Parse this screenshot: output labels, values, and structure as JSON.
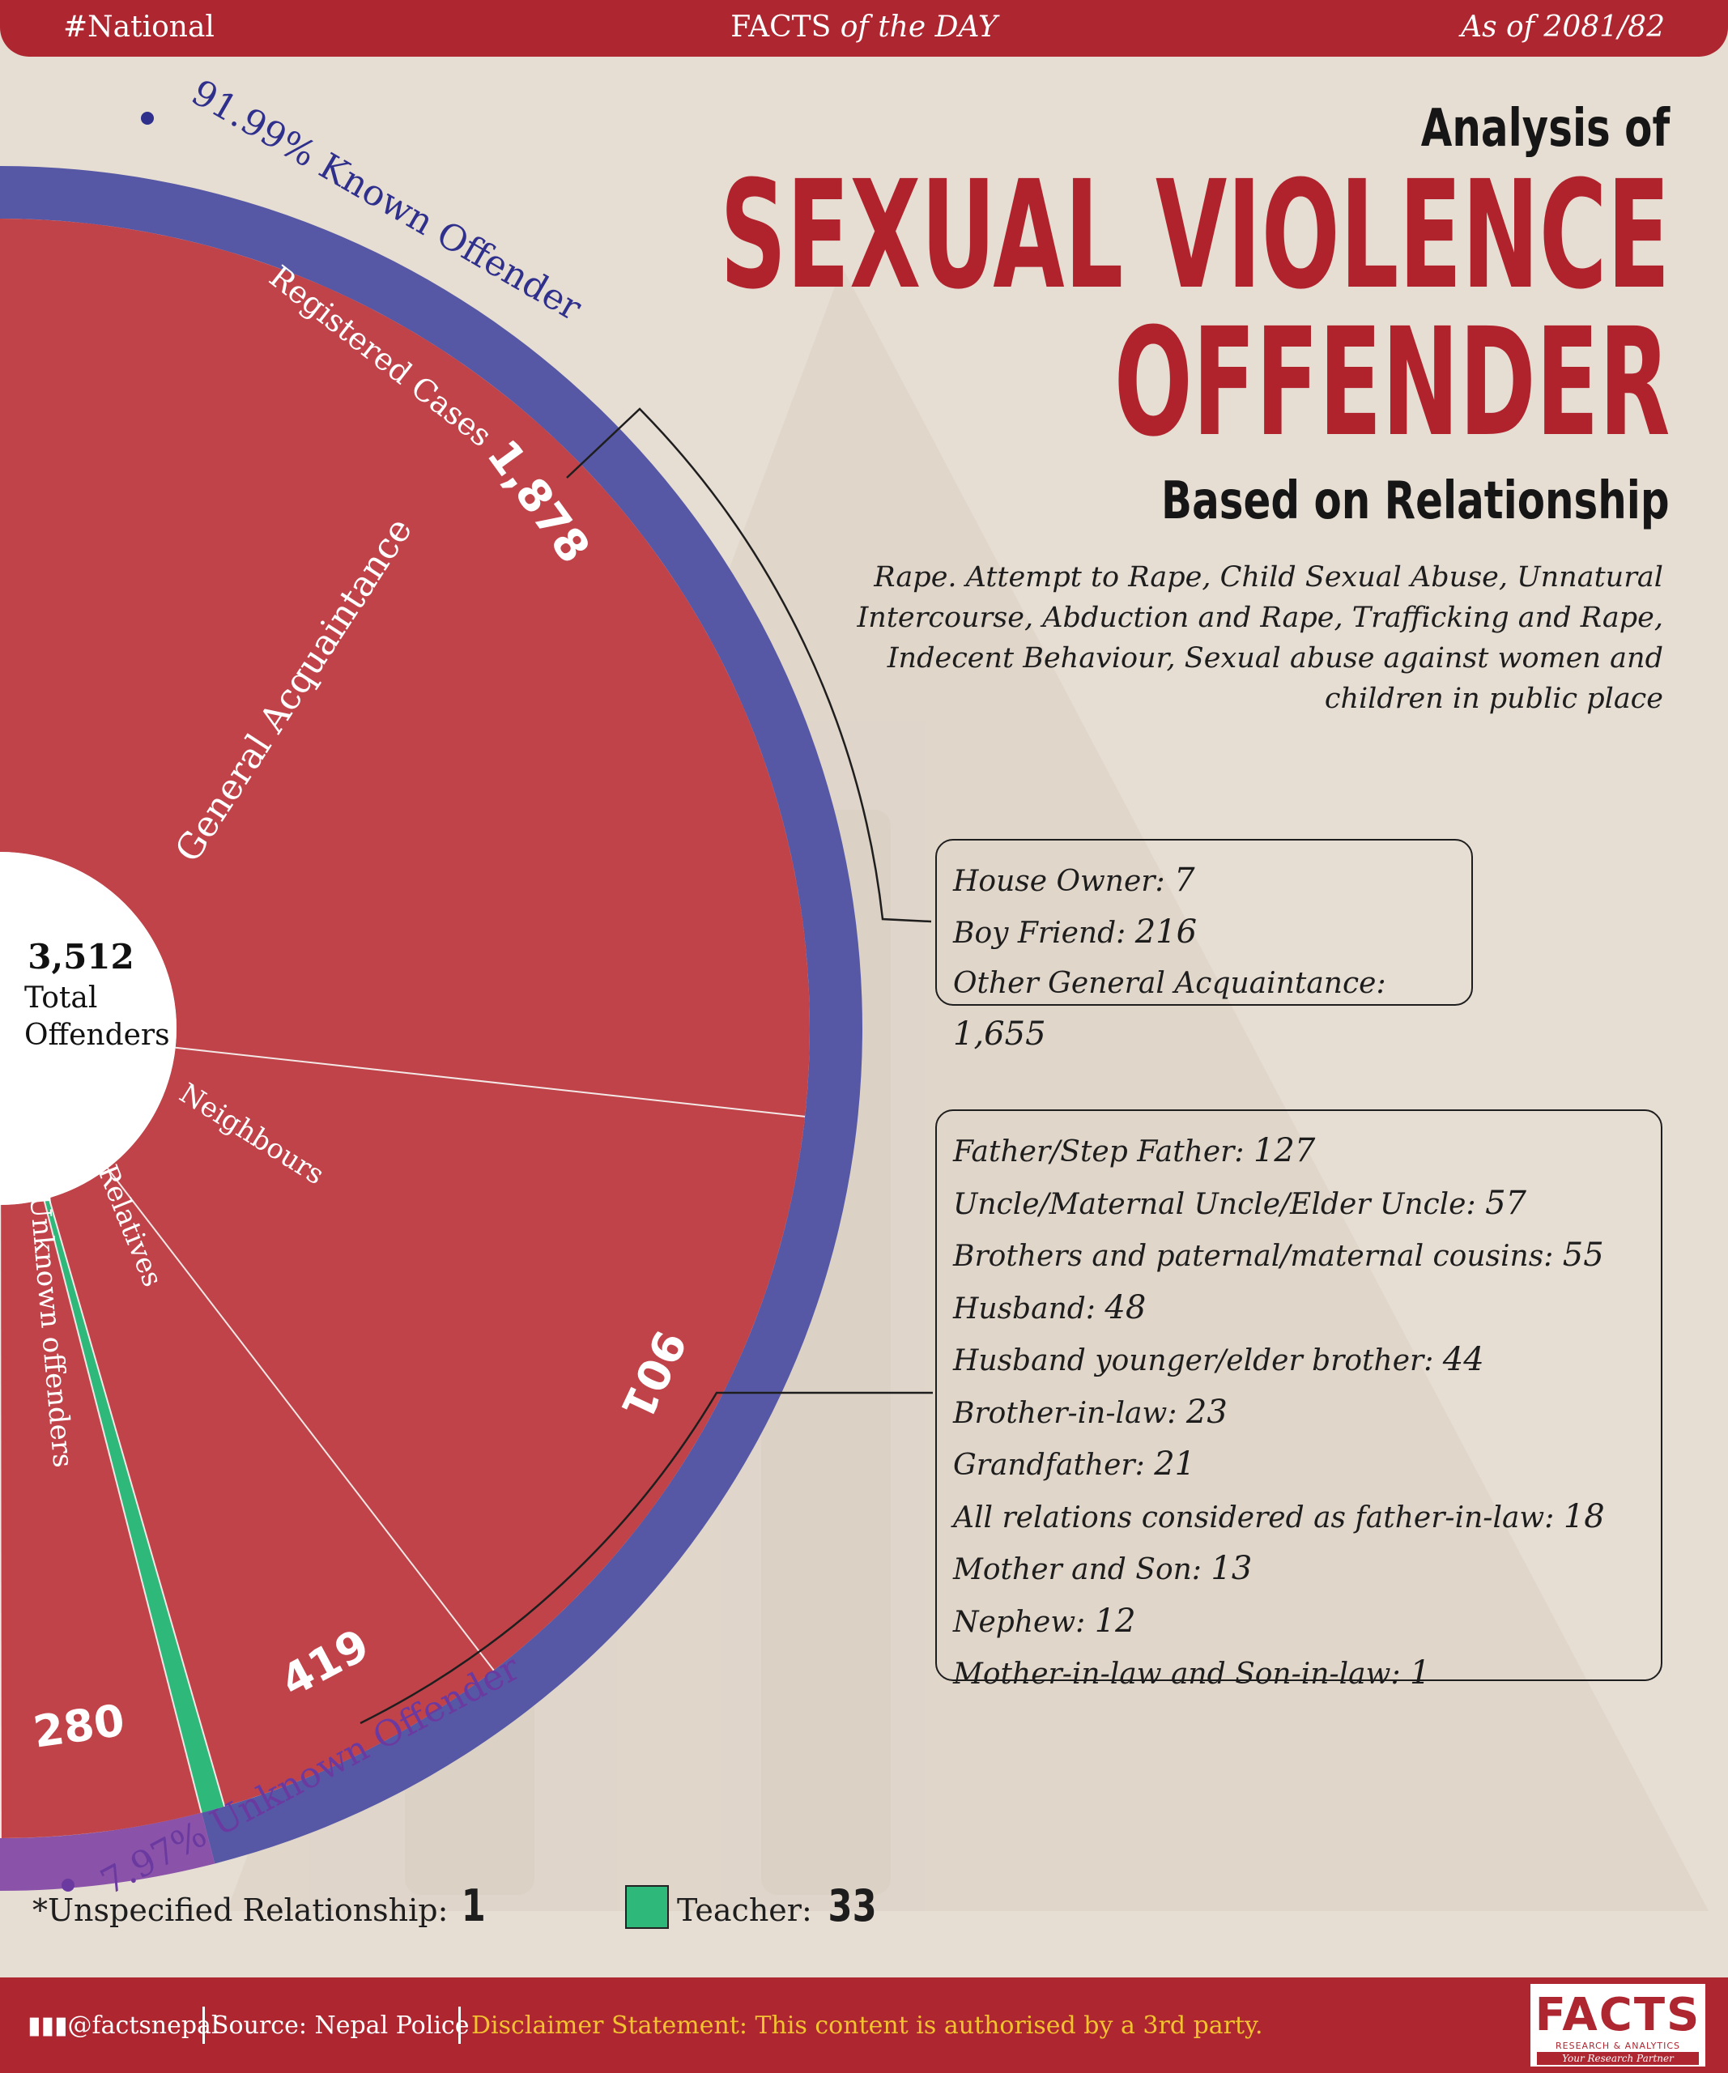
{
  "header": {
    "tag": "#National",
    "center_prefix": "FACTS",
    "center_suffix": "of the DAY",
    "as_of": "As of 2081/82"
  },
  "title": {
    "line1": "Analysis of",
    "main1": "SEXUAL VIOLENCE",
    "main2": "OFFENDER",
    "subtitle": "Based on Relationship"
  },
  "description": "Rape. Attempt to Rape, Child Sexual Abuse, Unnatural Intercourse, Abduction and Rape, Trafficking and Rape, Indecent Behaviour, Sexual abuse against women and children in public place",
  "center": {
    "total": "3,512",
    "label1": "Total",
    "label2": "Offenders"
  },
  "ring_labels": {
    "known": "91.99% Known Offender",
    "unknown": "7.97% Unknown Offender"
  },
  "chart_data": {
    "type": "pie",
    "total": 3512,
    "outer_ring": [
      {
        "name": "Known Offender",
        "percent": 91.99,
        "color": "#5658a6"
      },
      {
        "name": "Unknown Offender",
        "percent": 7.97,
        "color": "#8a52a8"
      }
    ],
    "slices": [
      {
        "name": "General Acquaintance",
        "value": 1878,
        "color": "#c1434a"
      },
      {
        "name": "Neighbours",
        "value": 901,
        "color": "#c1434a"
      },
      {
        "name": "Relatives",
        "value": 419,
        "color": "#c1434a"
      },
      {
        "name": "Teacher",
        "value": 33,
        "color": "#2eb87a"
      },
      {
        "name": "Unknown offenders",
        "value": 280,
        "color": "#c1434a"
      },
      {
        "name": "Unspecified Relationship",
        "value": 1,
        "color": "#c1434a"
      }
    ],
    "slice_labels": {
      "registered_cases": "Registered Cases",
      "general_acquaintance": "General Acquaintance",
      "neighbours": "Neighbours",
      "relatives": "Relatives",
      "unknown_offenders": "Unknown offenders",
      "v1878": "1,878",
      "v901": "901",
      "v419": "419",
      "v280": "280"
    }
  },
  "general_acquaintance_breakdown": [
    {
      "label": "House Owner:",
      "value": "7"
    },
    {
      "label": "Boy Friend:",
      "value": "216"
    },
    {
      "label": "Other General Acquaintance:",
      "value": "1,655"
    }
  ],
  "relatives_breakdown": [
    {
      "label": "Father/Step Father:",
      "value": "127"
    },
    {
      "label": "Uncle/Maternal Uncle/Elder Uncle:",
      "value": "57"
    },
    {
      "label": "Brothers and paternal/maternal cousins:",
      "value": "55"
    },
    {
      "label": "Husband:",
      "value": "48"
    },
    {
      "label": "Husband younger/elder brother:",
      "value": "44"
    },
    {
      "label": "Brother-in-law:",
      "value": "23"
    },
    {
      "label": "Grandfather:",
      "value": "21"
    },
    {
      "label": "All relations considered as father-in-law:",
      "value": "18"
    },
    {
      "label": "Mother and Son:",
      "value": "13"
    },
    {
      "label": "Nephew:",
      "value": "12"
    },
    {
      "label": "Mother-in-law and Son-in-law:",
      "value": "1"
    }
  ],
  "notes": {
    "unspecified_label": "*Unspecified Relationship:",
    "unspecified_value": "1",
    "teacher_label": "Teacher:",
    "teacher_value": "33"
  },
  "footer": {
    "handle": "@factsnepal",
    "source": "Source: Nepal Police",
    "disclaimer": "Disclaimer Statement: This content is authorised by a 3rd party."
  },
  "logo": {
    "name": "FACTS",
    "line1": "RESEARCH & ANALYTICS",
    "line2": "Your Research Partner"
  },
  "colors": {
    "brand_red": "#ad2630",
    "known_blue": "#5658a6",
    "unknown_purple": "#8a52a8",
    "slice_red": "#c1434a",
    "teacher_green": "#2eb87a",
    "disclaimer_yellow": "#f2c230",
    "background": "#e6ddd3"
  }
}
